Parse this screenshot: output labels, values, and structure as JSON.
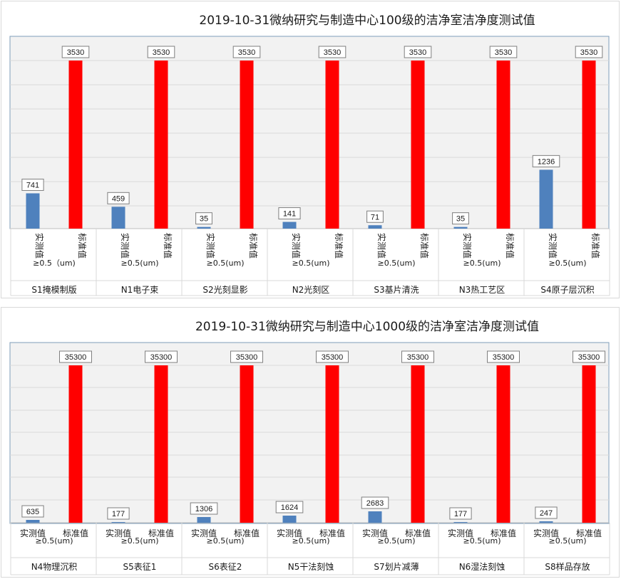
{
  "chart_data": [
    {
      "type": "bar",
      "title": "2019-10-31微纳研究与制造中心100级的洁净室洁净度测试值",
      "series": [
        {
          "name": "实测值",
          "color": "#4f81bd",
          "values": [
            741,
            459,
            35,
            141,
            71,
            35,
            1236
          ]
        },
        {
          "name": "标准值",
          "color": "#ff0000",
          "values": [
            3530,
            3530,
            3530,
            3530,
            3530,
            3530,
            3530
          ]
        }
      ],
      "series_labels": [
        "实测值",
        "标准值"
      ],
      "size_labels": [
        "≥0.5（um)",
        "≥0.5(um)",
        "≥0.5(um)",
        "≥0.5(um)",
        "≥0.5(um)",
        "≥0.5(um)",
        "≥0.5(um)"
      ],
      "categories": [
        "S1掩模制版",
        "N1电子束",
        "S2光刻显影",
        "N2光刻区",
        "S3基片清洗",
        "N3热工艺区",
        "S4原子层沉积"
      ],
      "ylim": [
        0,
        3530
      ],
      "vertical_labels": true,
      "grid": true
    },
    {
      "type": "bar",
      "title": "2019-10-31微纳研究与制造中心1000级的洁净室洁净度测试值",
      "series": [
        {
          "name": "实测值",
          "color": "#4f81bd",
          "values": [
            635,
            177,
            1306,
            1624,
            2683,
            177,
            247
          ]
        },
        {
          "name": "标准值",
          "color": "#ff0000",
          "values": [
            35300,
            35300,
            35300,
            35300,
            35300,
            35300,
            35300
          ]
        }
      ],
      "series_labels": [
        "实测值",
        "标准值"
      ],
      "size_labels": [
        "≥0.5(um)",
        "≥0.5(um)",
        "≥0.5(um)",
        "≥0.5(um)",
        "≥0.5(um)",
        "≥0.5(um)",
        "≥0.5(um)"
      ],
      "categories": [
        "N4物理沉积",
        "S5表征1",
        "S6表征2",
        "N5干法刻蚀",
        "S7划片减薄",
        "N6湿法刻蚀",
        "S8样品存放"
      ],
      "ylim": [
        0,
        35300
      ],
      "y_scale": "nonlinear",
      "vertical_labels": false,
      "grid": true
    }
  ]
}
